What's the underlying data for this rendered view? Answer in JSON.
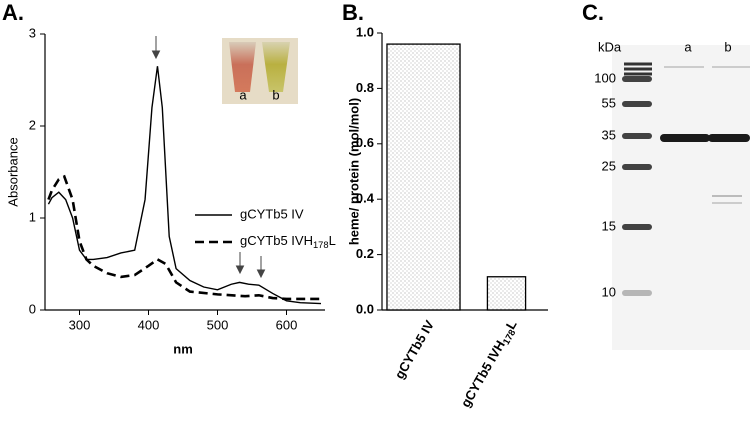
{
  "chart_data": [
    {
      "type": "line",
      "panel": "A.",
      "xlabel": "nm",
      "ylabel": "Absorbance",
      "xlim": [
        250,
        650
      ],
      "xticks": [
        300,
        400,
        500,
        600
      ],
      "ylim": [
        0,
        3
      ],
      "yticks": [
        0,
        1,
        2,
        3
      ],
      "series": [
        {
          "name": "gCYTb5 IV",
          "style": "solid",
          "color": "#000000",
          "x": [
            255,
            260,
            270,
            280,
            290,
            300,
            310,
            320,
            340,
            360,
            380,
            395,
            405,
            413,
            420,
            430,
            440,
            460,
            480,
            500,
            520,
            532,
            545,
            560,
            580,
            600,
            620,
            650
          ],
          "values": [
            1.15,
            1.22,
            1.28,
            1.2,
            1.0,
            0.65,
            0.55,
            0.55,
            0.57,
            0.62,
            0.65,
            1.2,
            2.2,
            2.65,
            2.2,
            0.8,
            0.45,
            0.32,
            0.25,
            0.22,
            0.28,
            0.3,
            0.28,
            0.27,
            0.18,
            0.1,
            0.08,
            0.07
          ]
        },
        {
          "name": "gCYTb5 IVH178L",
          "style": "dashed",
          "color": "#000000",
          "x": [
            255,
            260,
            270,
            278,
            290,
            300,
            310,
            320,
            340,
            360,
            380,
            400,
            413,
            425,
            440,
            460,
            500,
            540,
            560,
            580,
            600,
            650
          ],
          "values": [
            1.2,
            1.3,
            1.42,
            1.45,
            1.2,
            0.75,
            0.55,
            0.48,
            0.4,
            0.36,
            0.38,
            0.48,
            0.55,
            0.5,
            0.3,
            0.2,
            0.17,
            0.15,
            0.16,
            0.13,
            0.12,
            0.12
          ]
        }
      ],
      "inset_labels": [
        "a",
        "b"
      ]
    },
    {
      "type": "bar",
      "panel": "B.",
      "ylabel": "heme/ protein (mol/mol)",
      "categories": [
        "gCYTb5 IV",
        "gCYTb5 IVH178L"
      ],
      "values": [
        0.96,
        0.12
      ],
      "ylim": [
        0,
        1.0
      ],
      "yticks": [
        {
          "value": 0,
          "label": "0.0"
        },
        0.2,
        0.4,
        0.6,
        0.8,
        {
          "value": 1.0,
          "label": "1.0"
        }
      ]
    },
    {
      "type": "gel",
      "panel": "C.",
      "unit": "kDa",
      "ladder": [
        100,
        55,
        35,
        25,
        15,
        10
      ],
      "lanes": [
        "a",
        "b"
      ]
    }
  ]
}
